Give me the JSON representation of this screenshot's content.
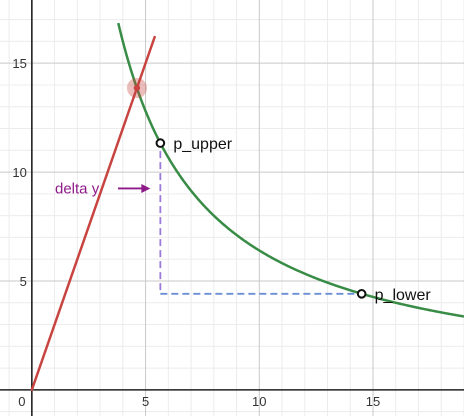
{
  "chart_data": {
    "type": "line",
    "xlim": [
      -1.4,
      19
    ],
    "ylim": [
      -1.2,
      17.9
    ],
    "grid": true,
    "x_ticks": [
      0,
      5,
      10,
      15
    ],
    "y_ticks": [
      5,
      10,
      15
    ],
    "x_tick_labels": [
      "0",
      "5",
      "10",
      "15"
    ],
    "y_tick_labels": [
      "5",
      "10",
      "15"
    ],
    "series": [
      {
        "kind": "linear",
        "slope": 3,
        "intercept": 0,
        "color": "#c74440",
        "x_range": [
          0,
          5.4
        ]
      },
      {
        "kind": "reciprocal",
        "k": 64,
        "color": "#388c46",
        "x_range": [
          3.8,
          19
        ]
      }
    ],
    "intersection": {
      "x": 4.62,
      "y": 13.86,
      "color": "#c74440"
    },
    "points": [
      {
        "label": "p_upper",
        "x": 5.65,
        "y": 11.33
      },
      {
        "label": "p_lower",
        "x": 14.5,
        "y": 4.41
      }
    ],
    "delta_guide": {
      "color": "#6b8ed6",
      "purple_color": "#9b7ad9"
    },
    "annotation": {
      "text": "delta y",
      "color": "#8e1a8a"
    }
  }
}
